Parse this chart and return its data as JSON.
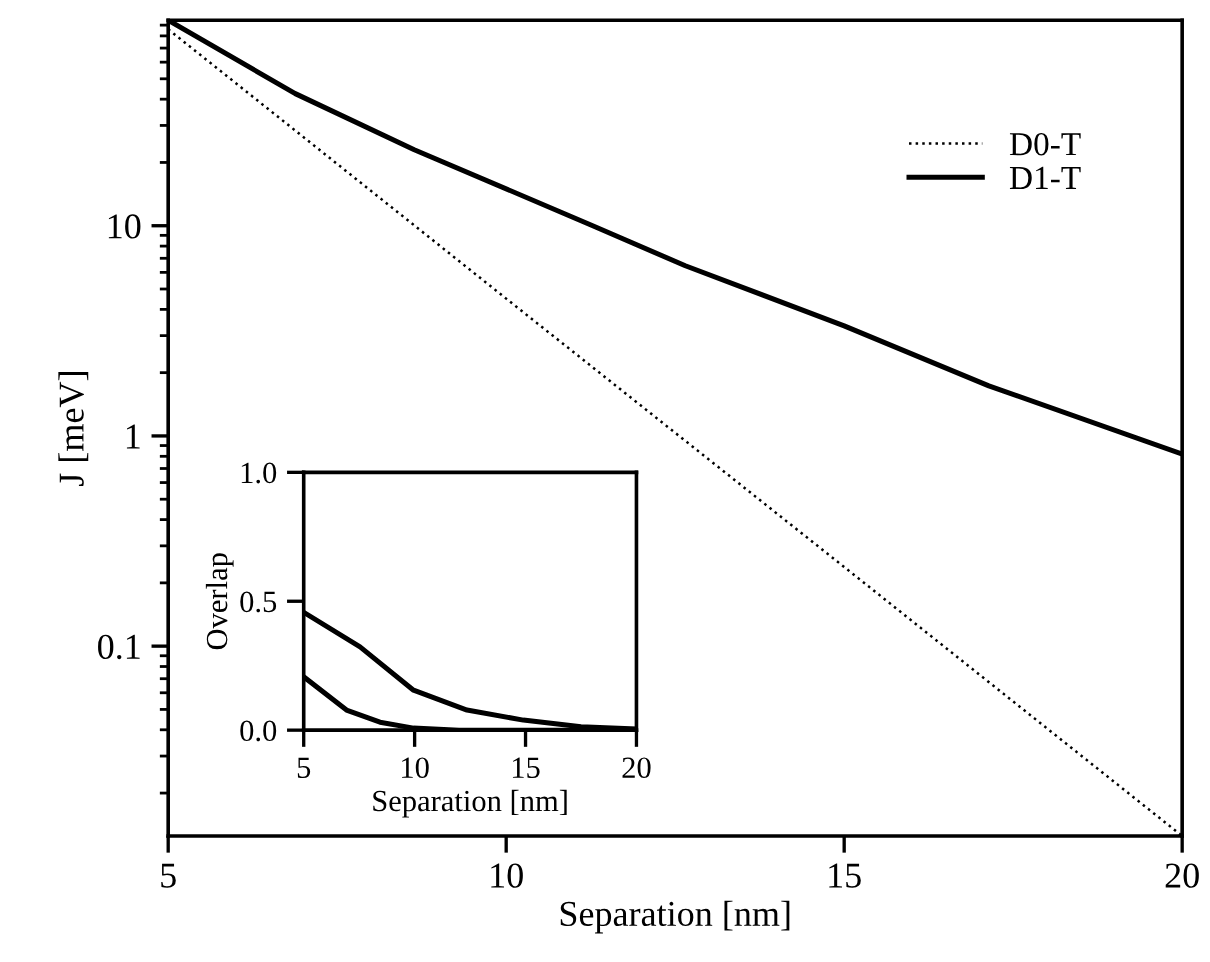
{
  "chart_data": [
    {
      "type": "line",
      "xlabel": "Separation [nm]",
      "ylabel": "J [meV]",
      "log": "y",
      "xlim": [
        5,
        20
      ],
      "ylim": [
        0.0125,
        95
      ],
      "xticks": [
        5,
        10,
        15,
        20
      ],
      "yticks": [
        0.1,
        1,
        10
      ],
      "legend": "top right",
      "grid": false,
      "series": [
        {
          "name": "D0-T",
          "color": "#000000",
          "line_style": "dotted",
          "x": [
            5,
            10,
            15,
            20
          ],
          "values": [
            86,
            4.5,
            0.238,
            0.0125
          ]
        },
        {
          "name": "D1-T",
          "color": "#000000",
          "line_style": "solid",
          "x": [
            5,
            6.88,
            8.64,
            11.28,
            12.65,
            15.0,
            17.14,
            20
          ],
          "values": [
            95,
            42.5,
            23,
            10,
            6.45,
            3.34,
            1.73,
            0.82
          ]
        }
      ]
    },
    {
      "type": "line",
      "xlabel": "Separation [nm]",
      "ylabel": "Overlap",
      "xlim": [
        5,
        20
      ],
      "ylim": [
        0,
        1
      ],
      "xticks": [
        5,
        10,
        15,
        20
      ],
      "yticks": [
        {
          "value": 0,
          "label": "0.0"
        },
        {
          "value": 0.5,
          "label": "0.5"
        },
        {
          "value": 1,
          "label": "1.0"
        }
      ],
      "grid": false,
      "series": [
        {
          "color": "#000000",
          "line_style": "solid",
          "x": [
            5,
            7.54,
            9.95,
            12.36,
            14.9,
            17.5,
            20
          ],
          "values": [
            0.457,
            0.323,
            0.155,
            0.078,
            0.039,
            0.013,
            0.005
          ]
        },
        {
          "color": "#000000",
          "line_style": "solid",
          "x": [
            5,
            6.93,
            8.44,
            9.95,
            12,
            20
          ],
          "values": [
            0.207,
            0.078,
            0.031,
            0.008,
            0,
            0
          ]
        }
      ]
    }
  ]
}
